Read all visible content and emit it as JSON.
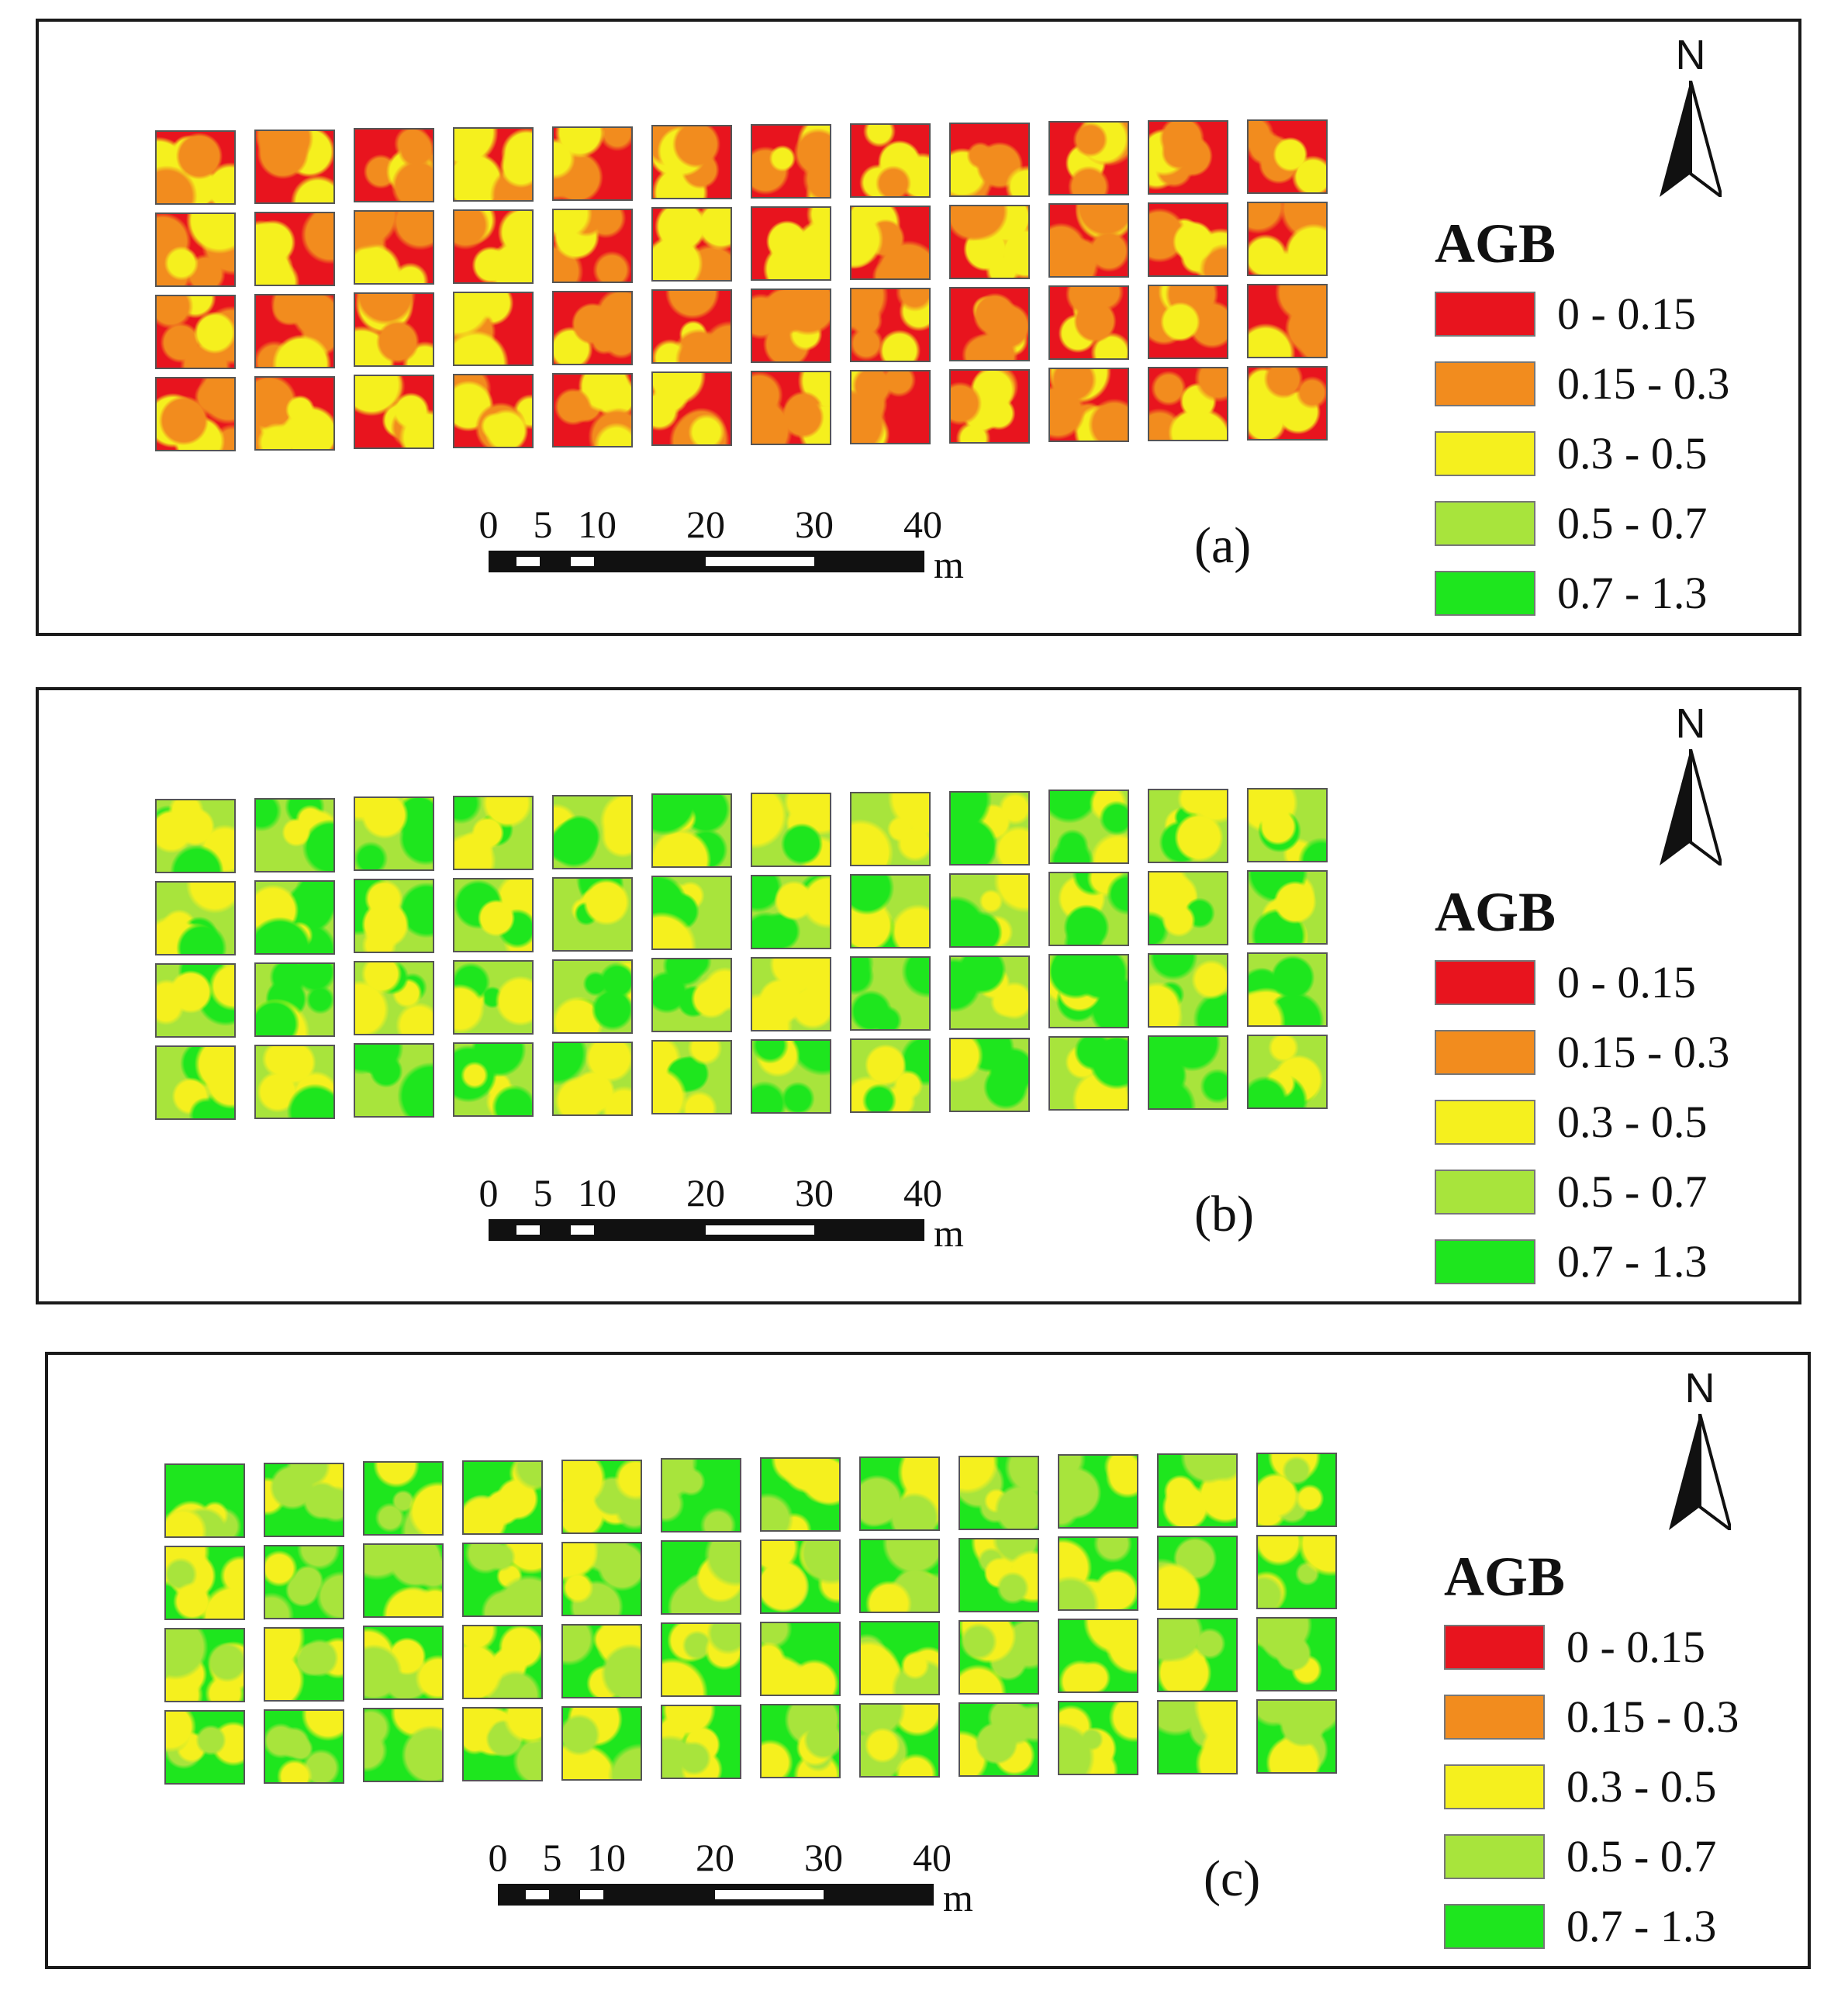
{
  "figure": {
    "panels": [
      {
        "id": "a",
        "label": "(a)",
        "dominant_class": 0
      },
      {
        "id": "b",
        "label": "(b)",
        "dominant_class": 3
      },
      {
        "id": "c",
        "label": "(c)",
        "dominant_class": 4
      }
    ],
    "north_label": "N",
    "legend": {
      "title": "AGB",
      "classes": [
        {
          "label": "0 - 0.15",
          "color": "#e8141e"
        },
        {
          "label": "0.15 - 0.3",
          "color": "#f28c1e"
        },
        {
          "label": "0.3 - 0.5",
          "color": "#f5f01e"
        },
        {
          "label": "0.5 - 0.7",
          "color": "#a8e43c"
        },
        {
          "label": "0.7 - 1.3",
          "color": "#1ee61e"
        }
      ]
    },
    "scale_bar": {
      "ticks": [
        "0",
        "5",
        "10",
        "20",
        "30",
        "40"
      ],
      "tick_values": [
        0,
        5,
        10,
        20,
        30,
        40
      ],
      "unit": "m"
    },
    "plot_grid": {
      "rows": 4,
      "columns": 12
    }
  }
}
